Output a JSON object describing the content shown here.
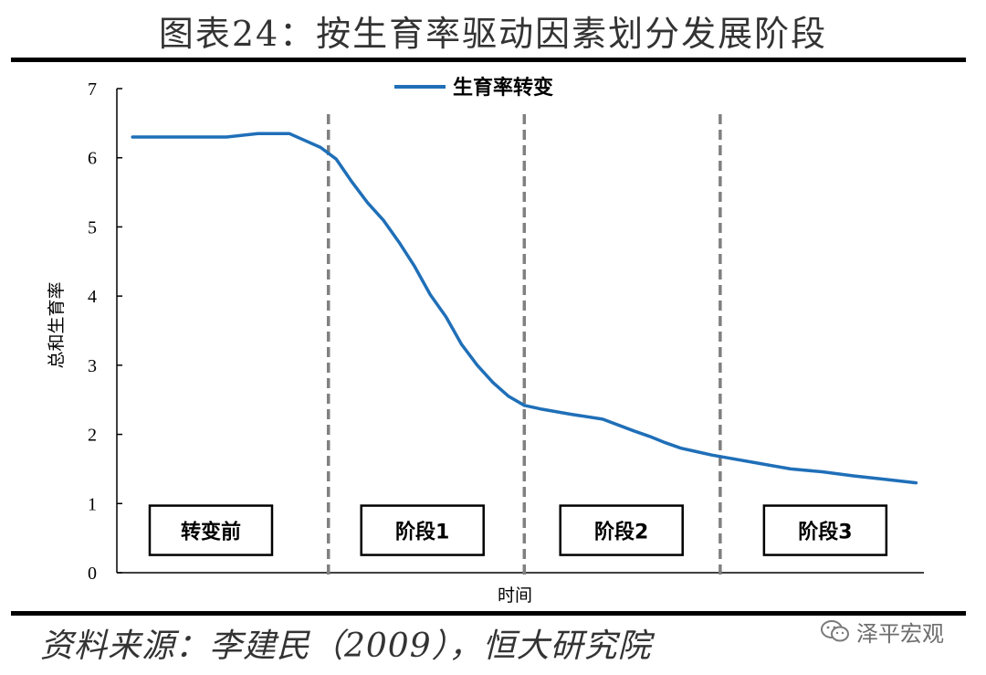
{
  "figure_title": "图表24：按生育率驱动因素划分发展阶段",
  "source_text": "资料来源：李建民（2009），恒大研究院",
  "watermark": {
    "text": "泽平宏观",
    "icon": "wechat-icon"
  },
  "colors": {
    "line": "#1f6fb8",
    "divider": "#808080",
    "text": "#000000"
  },
  "chart_data": {
    "type": "line",
    "title": "",
    "xlabel": "时间",
    "ylabel": "总和生育率",
    "ylim": [
      0,
      7
    ],
    "yticks": [
      "0",
      "1",
      "2",
      "3",
      "4",
      "5",
      "6",
      "7"
    ],
    "grid": false,
    "legend": {
      "position": "top-center",
      "entries": [
        "生育率转变"
      ]
    },
    "x": [
      0,
      3,
      6,
      8,
      10,
      11,
      12,
      13,
      14,
      15,
      16,
      17,
      18,
      19,
      20,
      21,
      22,
      23,
      24,
      25,
      26,
      28,
      30,
      32,
      33,
      34,
      35,
      36,
      37,
      38,
      40,
      42,
      44,
      46,
      48,
      50
    ],
    "series": [
      {
        "name": "生育率转变",
        "values": [
          6.3,
          6.3,
          6.3,
          6.35,
          6.35,
          6.25,
          6.15,
          5.98,
          5.65,
          5.35,
          5.1,
          4.78,
          4.43,
          4.02,
          3.7,
          3.3,
          3.0,
          2.75,
          2.55,
          2.42,
          2.37,
          2.29,
          2.22,
          2.05,
          1.97,
          1.88,
          1.8,
          1.75,
          1.7,
          1.66,
          1.58,
          1.5,
          1.46,
          1.4,
          1.35,
          1.3
        ]
      }
    ],
    "x_range": [
      -1,
      50.5
    ],
    "dividers": [
      12.5,
      25,
      37.5
    ],
    "stages": [
      {
        "label": "转变前",
        "center": 5
      },
      {
        "label": "阶段1",
        "center": 18.5
      },
      {
        "label": "阶段2",
        "center": 31.2
      },
      {
        "label": "阶段3",
        "center": 44.2
      }
    ],
    "stage_box_level": 0.6
  }
}
